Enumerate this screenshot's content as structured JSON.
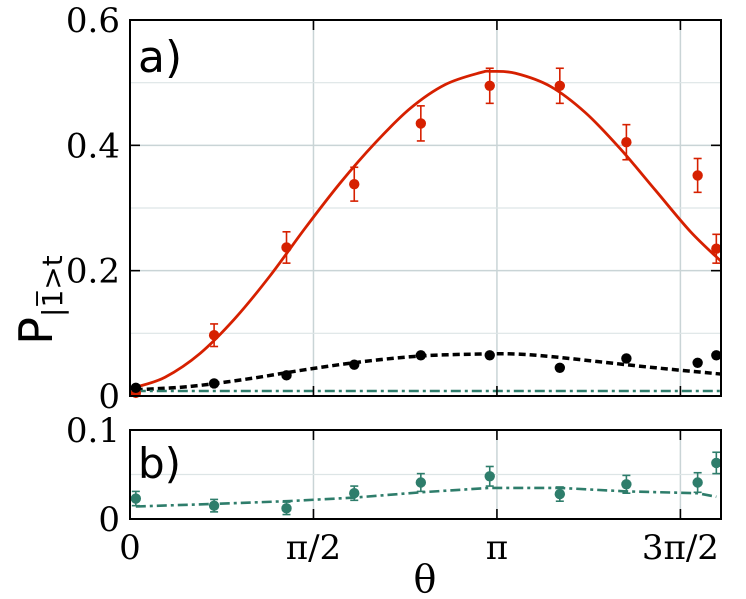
{
  "chart_data": [
    {
      "type": "scatter",
      "panel_label": "a)",
      "ylabel": "P|1̅>t",
      "xlim": [
        0,
        5.06
      ],
      "ylim": [
        0,
        0.6
      ],
      "x_ticks": [
        0,
        1.5708,
        3.1416,
        4.7124
      ],
      "x_tick_labels": [
        "0",
        "π/2",
        "π",
        "3π/2"
      ],
      "y_ticks": [
        0,
        0.2,
        0.4,
        0.6
      ],
      "y_tick_labels": [
        "0",
        "0.2",
        "0.4",
        "0.6"
      ],
      "grid": true,
      "series": [
        {
          "style": "points-with-errorbars",
          "color": "#d62000",
          "x": [
            0.05,
            0.72,
            1.34,
            1.92,
            2.49,
            3.08,
            3.68,
            4.25,
            4.86,
            5.02
          ],
          "y": [
            0.005,
            0.097,
            0.237,
            0.338,
            0.435,
            0.495,
            0.495,
            0.405,
            0.352,
            0.235
          ],
          "err": [
            0.005,
            0.018,
            0.025,
            0.027,
            0.028,
            0.028,
            0.028,
            0.028,
            0.027,
            0.023
          ]
        },
        {
          "style": "solid-line",
          "color": "#d62000",
          "x": [
            0.05,
            0.3,
            0.6,
            0.9,
            1.2,
            1.5,
            1.8,
            2.1,
            2.4,
            2.7,
            3.0,
            3.1,
            3.3,
            3.6,
            3.9,
            4.2,
            4.5,
            4.8,
            5.06
          ],
          "y": [
            0.014,
            0.03,
            0.068,
            0.124,
            0.192,
            0.268,
            0.34,
            0.404,
            0.459,
            0.497,
            0.516,
            0.518,
            0.515,
            0.494,
            0.452,
            0.394,
            0.328,
            0.262,
            0.215
          ]
        },
        {
          "style": "points",
          "color": "#000000",
          "x": [
            0.05,
            0.72,
            1.34,
            1.92,
            2.49,
            3.08,
            3.68,
            4.25,
            4.86,
            5.02
          ],
          "y": [
            0.013,
            0.02,
            0.033,
            0.05,
            0.065,
            0.065,
            0.045,
            0.06,
            0.053,
            0.065
          ]
        },
        {
          "style": "dashed-line",
          "color": "#000000",
          "x": [
            0.05,
            0.5,
            1.0,
            1.5,
            2.0,
            2.5,
            3.0,
            3.3,
            3.6,
            4.0,
            4.5,
            5.06
          ],
          "y": [
            0.01,
            0.015,
            0.027,
            0.042,
            0.055,
            0.064,
            0.067,
            0.067,
            0.063,
            0.055,
            0.045,
            0.035
          ]
        },
        {
          "style": "dash-dot-line",
          "color": "#2e7d6b",
          "x": [
            0.05,
            5.06
          ],
          "y": [
            0.008,
            0.008
          ]
        }
      ]
    },
    {
      "type": "scatter",
      "panel_label": "b)",
      "xlabel": "θ",
      "xlim": [
        0,
        5.06
      ],
      "ylim": [
        0,
        0.1
      ],
      "x_ticks": [
        0,
        1.5708,
        3.1416,
        4.7124
      ],
      "x_tick_labels": [
        "0",
        "π/2",
        "π",
        "3π/2"
      ],
      "y_ticks": [
        0,
        0.1
      ],
      "y_tick_labels": [
        "0",
        "0.1"
      ],
      "grid": true,
      "series": [
        {
          "style": "points-with-errorbars",
          "color": "#2e7d6b",
          "x": [
            0.05,
            0.72,
            1.34,
            1.92,
            2.49,
            3.08,
            3.68,
            4.25,
            4.86,
            5.02
          ],
          "y": [
            0.023,
            0.015,
            0.012,
            0.029,
            0.041,
            0.048,
            0.028,
            0.039,
            0.041,
            0.063
          ],
          "err": [
            0.008,
            0.007,
            0.007,
            0.008,
            0.01,
            0.011,
            0.008,
            0.01,
            0.011,
            0.012
          ]
        },
        {
          "style": "dash-dot-line",
          "color": "#2e7d6b",
          "x": [
            0.05,
            0.72,
            1.34,
            1.92,
            2.49,
            3.08,
            3.68,
            4.25,
            4.86,
            5.02
          ],
          "y": [
            0.014,
            0.017,
            0.02,
            0.024,
            0.03,
            0.035,
            0.035,
            0.031,
            0.029,
            0.025
          ]
        }
      ]
    }
  ]
}
